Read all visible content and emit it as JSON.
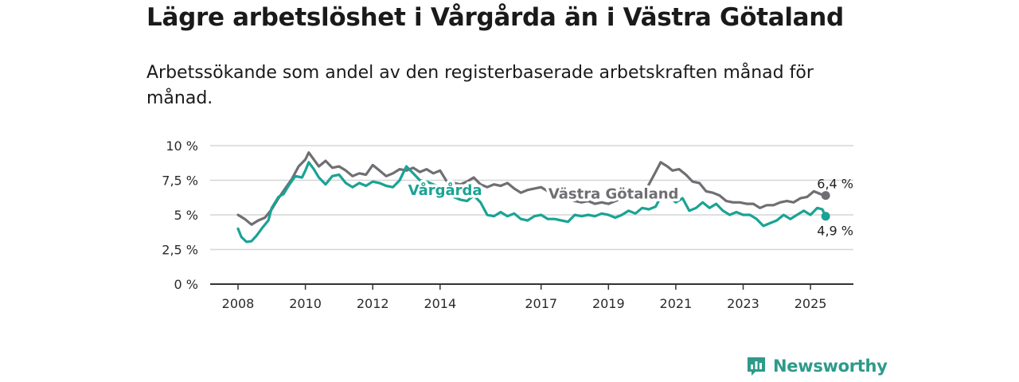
{
  "title": "Lägre arbetslöshet i Vårgårda än i Västra Götaland",
  "subtitle": "Arbetssökande som andel av den registerbaserade arbetskraften månad för månad.",
  "brand": "Newsworthy",
  "colors": {
    "vargarda": "#1aa394",
    "vastra": "#6f6f73",
    "grid": "#d6d6d6",
    "axis": "#333333",
    "brand": "#2e9a8a"
  },
  "chart_data": {
    "type": "line",
    "title": "Lägre arbetslöshet i Vårgårda än i Västra Götaland",
    "subtitle": "Arbetssökande som andel av den registerbaserade arbetskraften månad för månad.",
    "xlabel": "",
    "ylabel": "",
    "xlim": [
      2008,
      2025.7
    ],
    "ylim": [
      0,
      10
    ],
    "y_ticks": [
      0,
      2.5,
      5,
      7.5,
      10
    ],
    "y_tick_labels": [
      "0 %",
      "2,5 %",
      "5 %",
      "7,5 %",
      "10 %"
    ],
    "x_ticks": [
      2008,
      2010,
      2012,
      2014,
      2017,
      2019,
      2021,
      2023,
      2025
    ],
    "x_tick_labels": [
      "2008",
      "2010",
      "2012",
      "2014",
      "2017",
      "2019",
      "2021",
      "2023",
      "2025"
    ],
    "grid": true,
    "series": [
      {
        "name": "Västra Götaland",
        "color": "#6f6f73",
        "end_label": "6,4 %",
        "points": [
          [
            2008.0,
            5.0
          ],
          [
            2008.2,
            4.7
          ],
          [
            2008.4,
            4.3
          ],
          [
            2008.6,
            4.6
          ],
          [
            2008.8,
            4.8
          ],
          [
            2009.0,
            5.4
          ],
          [
            2009.2,
            6.2
          ],
          [
            2009.4,
            6.9
          ],
          [
            2009.6,
            7.6
          ],
          [
            2009.8,
            8.5
          ],
          [
            2010.0,
            9.0
          ],
          [
            2010.1,
            9.5
          ],
          [
            2010.25,
            9.0
          ],
          [
            2010.4,
            8.5
          ],
          [
            2010.6,
            8.9
          ],
          [
            2010.8,
            8.4
          ],
          [
            2011.0,
            8.5
          ],
          [
            2011.2,
            8.2
          ],
          [
            2011.4,
            7.8
          ],
          [
            2011.6,
            8.0
          ],
          [
            2011.8,
            7.9
          ],
          [
            2012.0,
            8.6
          ],
          [
            2012.2,
            8.2
          ],
          [
            2012.4,
            7.8
          ],
          [
            2012.6,
            8.0
          ],
          [
            2012.8,
            8.3
          ],
          [
            2013.0,
            8.2
          ],
          [
            2013.2,
            8.4
          ],
          [
            2013.4,
            8.1
          ],
          [
            2013.6,
            8.3
          ],
          [
            2013.8,
            8.0
          ],
          [
            2014.0,
            8.2
          ],
          [
            2014.2,
            7.4
          ],
          [
            2014.4,
            7.3
          ],
          [
            2014.6,
            7.2
          ],
          [
            2014.8,
            7.4
          ],
          [
            2015.0,
            7.7
          ],
          [
            2015.2,
            7.2
          ],
          [
            2015.4,
            7.0
          ],
          [
            2015.6,
            7.2
          ],
          [
            2015.8,
            7.1
          ],
          [
            2016.0,
            7.3
          ],
          [
            2016.2,
            6.9
          ],
          [
            2016.4,
            6.6
          ],
          [
            2016.6,
            6.8
          ],
          [
            2016.8,
            6.9
          ],
          [
            2017.0,
            7.0
          ],
          [
            2017.2,
            6.7
          ],
          [
            2017.4,
            6.5
          ],
          [
            2017.6,
            6.5
          ],
          [
            2017.8,
            6.2
          ],
          [
            2018.0,
            6.0
          ],
          [
            2018.2,
            5.9
          ],
          [
            2018.4,
            6.0
          ],
          [
            2018.6,
            5.8
          ],
          [
            2018.8,
            5.9
          ],
          [
            2019.0,
            5.8
          ],
          [
            2019.2,
            6.0
          ],
          [
            2019.4,
            6.2
          ],
          [
            2019.6,
            6.4
          ],
          [
            2019.8,
            6.6
          ],
          [
            2020.0,
            6.5
          ],
          [
            2020.2,
            7.2
          ],
          [
            2020.4,
            8.1
          ],
          [
            2020.55,
            8.8
          ],
          [
            2020.75,
            8.5
          ],
          [
            2020.9,
            8.2
          ],
          [
            2021.1,
            8.3
          ],
          [
            2021.3,
            7.9
          ],
          [
            2021.5,
            7.4
          ],
          [
            2021.7,
            7.3
          ],
          [
            2021.9,
            6.7
          ],
          [
            2022.1,
            6.6
          ],
          [
            2022.3,
            6.4
          ],
          [
            2022.5,
            6.0
          ],
          [
            2022.7,
            5.9
          ],
          [
            2022.9,
            5.9
          ],
          [
            2023.1,
            5.8
          ],
          [
            2023.3,
            5.8
          ],
          [
            2023.5,
            5.5
          ],
          [
            2023.7,
            5.7
          ],
          [
            2023.9,
            5.7
          ],
          [
            2024.1,
            5.9
          ],
          [
            2024.3,
            6.0
          ],
          [
            2024.5,
            5.9
          ],
          [
            2024.7,
            6.2
          ],
          [
            2024.9,
            6.3
          ],
          [
            2025.1,
            6.7
          ],
          [
            2025.3,
            6.5
          ],
          [
            2025.45,
            6.4
          ]
        ]
      },
      {
        "name": "Vårgårda",
        "color": "#1aa394",
        "end_label": "4,9 %",
        "points": [
          [
            2008.0,
            4.0
          ],
          [
            2008.1,
            3.4
          ],
          [
            2008.25,
            3.05
          ],
          [
            2008.4,
            3.1
          ],
          [
            2008.55,
            3.5
          ],
          [
            2008.7,
            4.0
          ],
          [
            2008.9,
            4.6
          ],
          [
            2009.0,
            5.5
          ],
          [
            2009.2,
            6.3
          ],
          [
            2009.35,
            6.5
          ],
          [
            2009.5,
            7.1
          ],
          [
            2009.7,
            7.8
          ],
          [
            2009.9,
            7.7
          ],
          [
            2010.0,
            8.2
          ],
          [
            2010.1,
            8.8
          ],
          [
            2010.25,
            8.3
          ],
          [
            2010.4,
            7.7
          ],
          [
            2010.6,
            7.2
          ],
          [
            2010.8,
            7.8
          ],
          [
            2011.0,
            7.9
          ],
          [
            2011.2,
            7.3
          ],
          [
            2011.4,
            7.0
          ],
          [
            2011.6,
            7.3
          ],
          [
            2011.8,
            7.1
          ],
          [
            2012.0,
            7.4
          ],
          [
            2012.2,
            7.3
          ],
          [
            2012.4,
            7.1
          ],
          [
            2012.6,
            7.0
          ],
          [
            2012.8,
            7.5
          ],
          [
            2013.0,
            8.5
          ],
          [
            2013.2,
            8.0
          ],
          [
            2013.4,
            7.5
          ],
          [
            2013.6,
            7.4
          ],
          [
            2013.8,
            7.2
          ],
          [
            2014.0,
            7.0
          ],
          [
            2014.2,
            6.6
          ],
          [
            2014.4,
            6.3
          ],
          [
            2014.6,
            6.1
          ],
          [
            2014.8,
            6.0
          ],
          [
            2015.0,
            6.4
          ],
          [
            2015.2,
            5.9
          ],
          [
            2015.4,
            5.0
          ],
          [
            2015.6,
            4.9
          ],
          [
            2015.8,
            5.2
          ],
          [
            2016.0,
            4.9
          ],
          [
            2016.2,
            5.1
          ],
          [
            2016.4,
            4.7
          ],
          [
            2016.6,
            4.6
          ],
          [
            2016.8,
            4.9
          ],
          [
            2017.0,
            5.0
          ],
          [
            2017.2,
            4.7
          ],
          [
            2017.4,
            4.7
          ],
          [
            2017.6,
            4.6
          ],
          [
            2017.8,
            4.5
          ],
          [
            2018.0,
            5.0
          ],
          [
            2018.2,
            4.9
          ],
          [
            2018.4,
            5.0
          ],
          [
            2018.6,
            4.9
          ],
          [
            2018.8,
            5.1
          ],
          [
            2019.0,
            5.0
          ],
          [
            2019.2,
            4.8
          ],
          [
            2019.4,
            5.0
          ],
          [
            2019.6,
            5.3
          ],
          [
            2019.8,
            5.1
          ],
          [
            2020.0,
            5.5
          ],
          [
            2020.2,
            5.4
          ],
          [
            2020.4,
            5.6
          ],
          [
            2020.6,
            6.5
          ],
          [
            2020.8,
            6.3
          ],
          [
            2021.0,
            5.9
          ],
          [
            2021.2,
            6.2
          ],
          [
            2021.4,
            5.3
          ],
          [
            2021.6,
            5.5
          ],
          [
            2021.8,
            5.9
          ],
          [
            2022.0,
            5.5
          ],
          [
            2022.2,
            5.8
          ],
          [
            2022.4,
            5.3
          ],
          [
            2022.6,
            5.0
          ],
          [
            2022.8,
            5.2
          ],
          [
            2023.0,
            5.0
          ],
          [
            2023.2,
            5.0
          ],
          [
            2023.4,
            4.7
          ],
          [
            2023.6,
            4.2
          ],
          [
            2023.8,
            4.4
          ],
          [
            2024.0,
            4.6
          ],
          [
            2024.2,
            5.0
          ],
          [
            2024.4,
            4.7
          ],
          [
            2024.6,
            5.0
          ],
          [
            2024.8,
            5.3
          ],
          [
            2025.0,
            5.0
          ],
          [
            2025.2,
            5.5
          ],
          [
            2025.35,
            5.4
          ],
          [
            2025.45,
            4.9
          ]
        ]
      }
    ],
    "annotations": [
      {
        "text": "Vårgårda",
        "series": "Vårgårda"
      },
      {
        "text": "Västra Götaland",
        "series": "Västra Götaland"
      }
    ]
  }
}
